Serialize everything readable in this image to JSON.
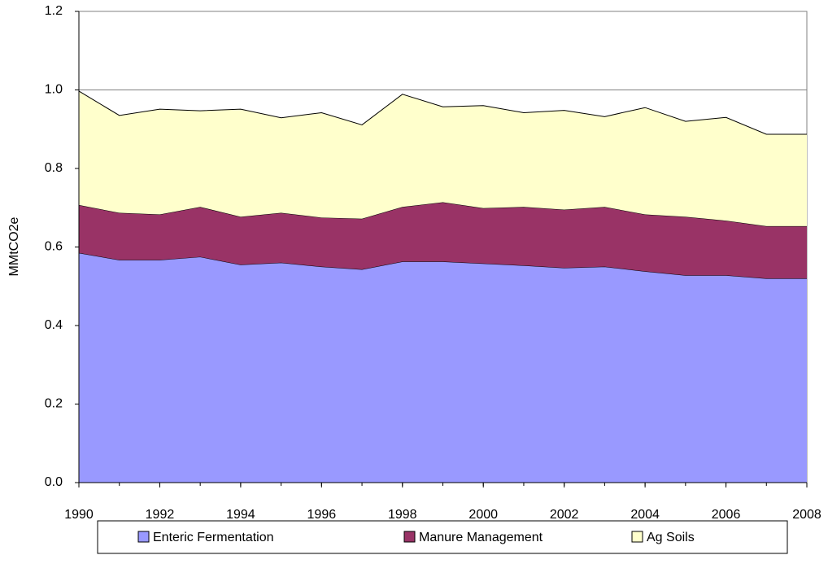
{
  "chart_data": {
    "type": "stacked-area",
    "y_label": "MMtCO2e",
    "x": [
      1990,
      1991,
      1992,
      1993,
      1994,
      1995,
      1996,
      1997,
      1998,
      1999,
      2000,
      2001,
      2002,
      2003,
      2004,
      2005,
      2006,
      2007,
      2008
    ],
    "xlim": [
      1990,
      2008
    ],
    "xticks": [
      1990,
      1992,
      1994,
      1996,
      1998,
      2000,
      2002,
      2004,
      2006,
      2008
    ],
    "ylim": [
      0,
      1.2
    ],
    "yticks": [
      {
        "value": 0,
        "label": "0.0"
      },
      0.2,
      0.4,
      0.6,
      0.8,
      {
        "value": 1,
        "label": "1.0"
      },
      1.2
    ],
    "grid": true,
    "legend": "bottom",
    "series": [
      {
        "name": "Enteric Fermentation",
        "color": "#9999ff",
        "values": [
          0.585,
          0.567,
          0.567,
          0.575,
          0.555,
          0.56,
          0.55,
          0.543,
          0.563,
          0.563,
          0.558,
          0.553,
          0.547,
          0.55,
          0.538,
          0.528,
          0.528,
          0.52,
          0.52
        ]
      },
      {
        "name": "Manure Management",
        "color": "#993366",
        "values": [
          0.122,
          0.12,
          0.116,
          0.127,
          0.122,
          0.127,
          0.125,
          0.129,
          0.139,
          0.151,
          0.141,
          0.149,
          0.148,
          0.152,
          0.145,
          0.149,
          0.139,
          0.133,
          0.133
        ]
      },
      {
        "name": "Ag Soils",
        "color": "#ffffcc",
        "values": [
          0.29,
          0.248,
          0.268,
          0.245,
          0.274,
          0.242,
          0.267,
          0.239,
          0.287,
          0.243,
          0.261,
          0.24,
          0.253,
          0.23,
          0.272,
          0.243,
          0.263,
          0.234,
          0.234
        ]
      }
    ]
  }
}
